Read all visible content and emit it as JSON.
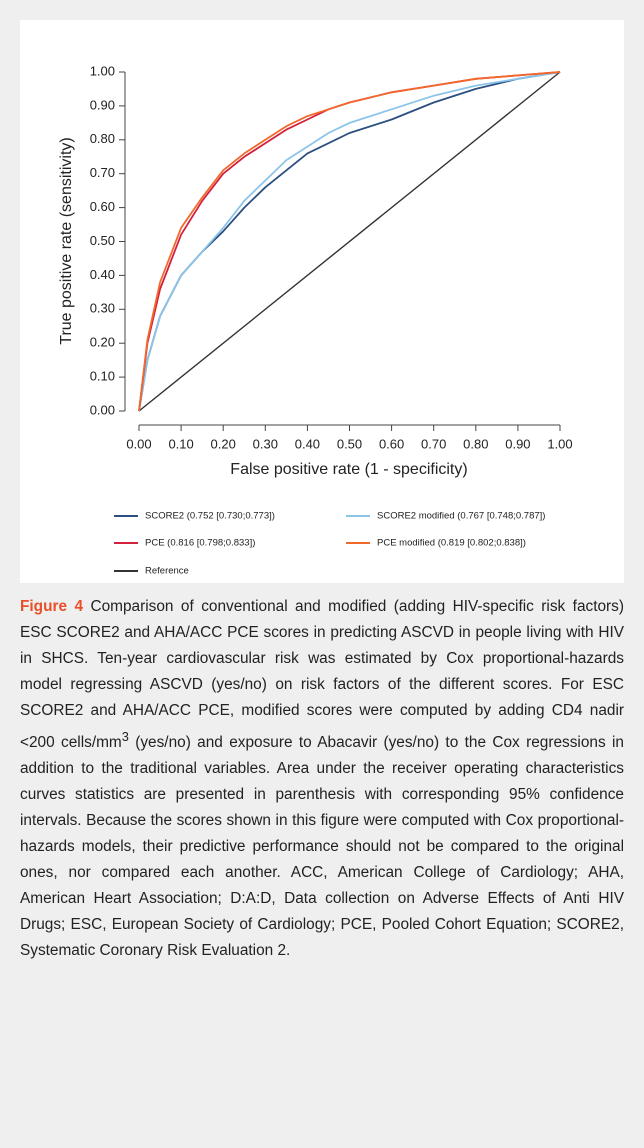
{
  "chart_data": {
    "type": "line",
    "xlabel": "False positive rate (1 - specificity)",
    "ylabel": "True positive rate (sensitivity)",
    "xlim": [
      0,
      1
    ],
    "ylim": [
      0,
      1
    ],
    "xticks": [
      {
        "value": 0,
        "label": "0.00"
      },
      {
        "value": 0.1,
        "label": "0.10"
      },
      {
        "value": 0.2,
        "label": "0.20"
      },
      {
        "value": 0.3,
        "label": "0.30"
      },
      {
        "value": 0.4,
        "label": "0.40"
      },
      {
        "value": 0.5,
        "label": "0.50"
      },
      {
        "value": 0.6,
        "label": "0.60"
      },
      {
        "value": 0.7,
        "label": "0.70"
      },
      {
        "value": 0.8,
        "label": "0.80"
      },
      {
        "value": 0.9,
        "label": "0.90"
      },
      {
        "value": 1,
        "label": "1.00"
      }
    ],
    "yticks": [
      {
        "value": 0,
        "label": "0.00"
      },
      {
        "value": 0.1,
        "label": "0.10"
      },
      {
        "value": 0.2,
        "label": "0.20"
      },
      {
        "value": 0.3,
        "label": "0.30"
      },
      {
        "value": 0.4,
        "label": "0.40"
      },
      {
        "value": 0.5,
        "label": "0.50"
      },
      {
        "value": 0.6,
        "label": "0.60"
      },
      {
        "value": 0.7,
        "label": "0.70"
      },
      {
        "value": 0.8,
        "label": "0.80"
      },
      {
        "value": 0.9,
        "label": "0.90"
      },
      {
        "value": 1,
        "label": "1.00"
      }
    ],
    "series": [
      {
        "name": "SCORE2 (0.752 [0.730;0.773])",
        "color": "#2c4f80",
        "x": [
          0,
          0.02,
          0.05,
          0.1,
          0.15,
          0.2,
          0.25,
          0.3,
          0.35,
          0.4,
          0.45,
          0.5,
          0.6,
          0.7,
          0.8,
          0.9,
          1
        ],
        "values": [
          0,
          0.15,
          0.28,
          0.4,
          0.47,
          0.53,
          0.6,
          0.66,
          0.71,
          0.76,
          0.79,
          0.82,
          0.86,
          0.91,
          0.95,
          0.98,
          1
        ]
      },
      {
        "name": "SCORE2 modified (0.767 [0.748;0.787])",
        "color": "#8cc4ea",
        "x": [
          0,
          0.02,
          0.05,
          0.1,
          0.15,
          0.2,
          0.25,
          0.3,
          0.35,
          0.4,
          0.45,
          0.5,
          0.6,
          0.7,
          0.8,
          0.9,
          1
        ],
        "values": [
          0,
          0.15,
          0.28,
          0.4,
          0.47,
          0.54,
          0.62,
          0.68,
          0.74,
          0.78,
          0.82,
          0.85,
          0.89,
          0.93,
          0.96,
          0.98,
          1
        ]
      },
      {
        "name": "PCE (0.816 [0.798;0.833])",
        "color": "#d3203c",
        "x": [
          0,
          0.02,
          0.05,
          0.1,
          0.15,
          0.2,
          0.25,
          0.3,
          0.35,
          0.4,
          0.45,
          0.5,
          0.6,
          0.7,
          0.8,
          0.9,
          1
        ],
        "values": [
          0,
          0.2,
          0.36,
          0.52,
          0.62,
          0.7,
          0.75,
          0.79,
          0.83,
          0.86,
          0.89,
          0.91,
          0.94,
          0.96,
          0.98,
          0.99,
          1
        ]
      },
      {
        "name": "PCE modified (0.819 [0.802;0.838])",
        "color": "#f2692c",
        "x": [
          0,
          0.02,
          0.05,
          0.1,
          0.15,
          0.2,
          0.25,
          0.3,
          0.35,
          0.4,
          0.45,
          0.5,
          0.6,
          0.7,
          0.8,
          0.9,
          1
        ],
        "values": [
          0,
          0.21,
          0.38,
          0.54,
          0.63,
          0.71,
          0.76,
          0.8,
          0.84,
          0.87,
          0.89,
          0.91,
          0.94,
          0.96,
          0.98,
          0.99,
          1
        ]
      },
      {
        "name": "Reference",
        "color": "#333333",
        "x": [
          0,
          1
        ],
        "values": [
          0,
          1
        ]
      }
    ]
  },
  "caption": {
    "label": "Figure 4",
    "text": " Comparison of conventional and modified (adding HIV-specific risk factors) ESC SCORE2 and AHA/ACC PCE scores in predicting ASCVD in people living with HIV in SHCS. Ten-year cardiovascular risk was estimated by Cox proportional-hazards model regressing ASCVD (yes/no) on risk factors of the different scores. For ESC SCORE2 and AHA/ACC PCE, modified scores were computed by adding CD4 nadir <200 cells/mm",
    "superscript": "3",
    "text_after": " (yes/no) and exposure to Abacavir (yes/no) to the Cox regressions in addition to the traditional variables. Area under the receiver operating characteristics curves statistics are presented in parenthesis with corresponding 95% confidence intervals. Because the scores shown in this figure were computed with Cox proportional-hazards models, their predictive performance should not be compared to the original ones, nor compared each another. ACC, American College of Cardiology; AHA, American Heart Association; D:A:D, Data collection on Adverse Effects of Anti HIV Drugs; ESC, European Society of Cardiology; PCE, Pooled Cohort Equation; SCORE2, Systematic Coronary Risk Evaluation 2."
  }
}
